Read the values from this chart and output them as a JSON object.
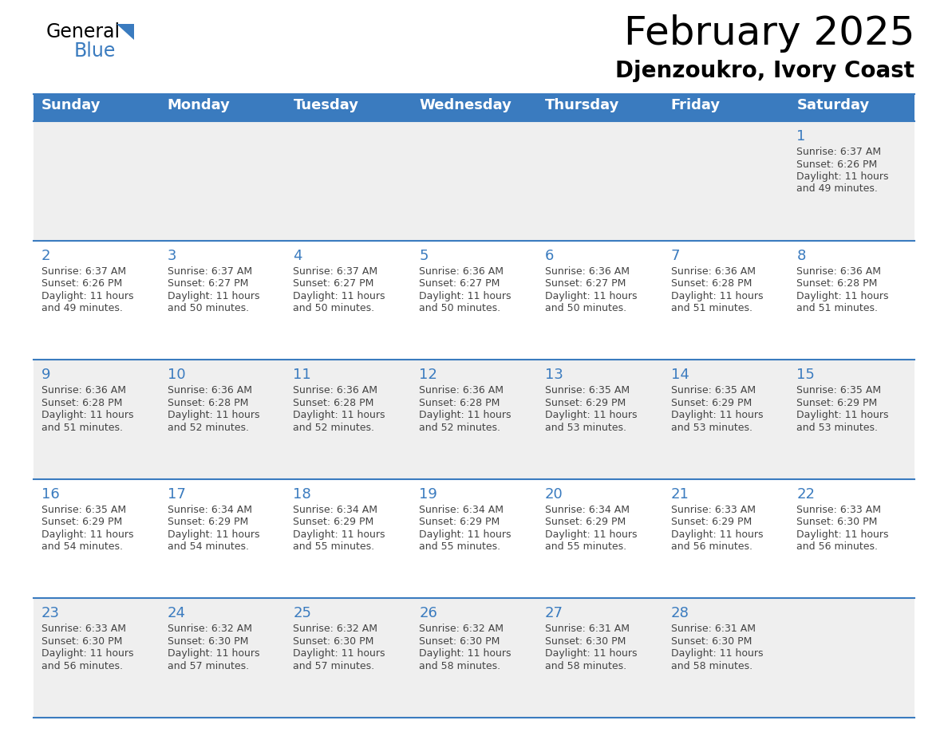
{
  "title": "February 2025",
  "subtitle": "Djenzoukro, Ivory Coast",
  "header_bg_color": "#3a7bbf",
  "header_text_color": "#ffffff",
  "days_of_week": [
    "Sunday",
    "Monday",
    "Tuesday",
    "Wednesday",
    "Thursday",
    "Friday",
    "Saturday"
  ],
  "row_bg_colors": [
    "#efefef",
    "#ffffff"
  ],
  "separator_color": "#3a7bbf",
  "day_number_color": "#3a7bbf",
  "cell_text_color": "#444444",
  "calendar_data": [
    [
      {
        "day": null,
        "sunrise": null,
        "sunset": null,
        "daylight": null
      },
      {
        "day": null,
        "sunrise": null,
        "sunset": null,
        "daylight": null
      },
      {
        "day": null,
        "sunrise": null,
        "sunset": null,
        "daylight": null
      },
      {
        "day": null,
        "sunrise": null,
        "sunset": null,
        "daylight": null
      },
      {
        "day": null,
        "sunrise": null,
        "sunset": null,
        "daylight": null
      },
      {
        "day": null,
        "sunrise": null,
        "sunset": null,
        "daylight": null
      },
      {
        "day": 1,
        "sunrise": "6:37 AM",
        "sunset": "6:26 PM",
        "daylight": "11 hours\nand 49 minutes."
      }
    ],
    [
      {
        "day": 2,
        "sunrise": "6:37 AM",
        "sunset": "6:26 PM",
        "daylight": "11 hours\nand 49 minutes."
      },
      {
        "day": 3,
        "sunrise": "6:37 AM",
        "sunset": "6:27 PM",
        "daylight": "11 hours\nand 50 minutes."
      },
      {
        "day": 4,
        "sunrise": "6:37 AM",
        "sunset": "6:27 PM",
        "daylight": "11 hours\nand 50 minutes."
      },
      {
        "day": 5,
        "sunrise": "6:36 AM",
        "sunset": "6:27 PM",
        "daylight": "11 hours\nand 50 minutes."
      },
      {
        "day": 6,
        "sunrise": "6:36 AM",
        "sunset": "6:27 PM",
        "daylight": "11 hours\nand 50 minutes."
      },
      {
        "day": 7,
        "sunrise": "6:36 AM",
        "sunset": "6:28 PM",
        "daylight": "11 hours\nand 51 minutes."
      },
      {
        "day": 8,
        "sunrise": "6:36 AM",
        "sunset": "6:28 PM",
        "daylight": "11 hours\nand 51 minutes."
      }
    ],
    [
      {
        "day": 9,
        "sunrise": "6:36 AM",
        "sunset": "6:28 PM",
        "daylight": "11 hours\nand 51 minutes."
      },
      {
        "day": 10,
        "sunrise": "6:36 AM",
        "sunset": "6:28 PM",
        "daylight": "11 hours\nand 52 minutes."
      },
      {
        "day": 11,
        "sunrise": "6:36 AM",
        "sunset": "6:28 PM",
        "daylight": "11 hours\nand 52 minutes."
      },
      {
        "day": 12,
        "sunrise": "6:36 AM",
        "sunset": "6:28 PM",
        "daylight": "11 hours\nand 52 minutes."
      },
      {
        "day": 13,
        "sunrise": "6:35 AM",
        "sunset": "6:29 PM",
        "daylight": "11 hours\nand 53 minutes."
      },
      {
        "day": 14,
        "sunrise": "6:35 AM",
        "sunset": "6:29 PM",
        "daylight": "11 hours\nand 53 minutes."
      },
      {
        "day": 15,
        "sunrise": "6:35 AM",
        "sunset": "6:29 PM",
        "daylight": "11 hours\nand 53 minutes."
      }
    ],
    [
      {
        "day": 16,
        "sunrise": "6:35 AM",
        "sunset": "6:29 PM",
        "daylight": "11 hours\nand 54 minutes."
      },
      {
        "day": 17,
        "sunrise": "6:34 AM",
        "sunset": "6:29 PM",
        "daylight": "11 hours\nand 54 minutes."
      },
      {
        "day": 18,
        "sunrise": "6:34 AM",
        "sunset": "6:29 PM",
        "daylight": "11 hours\nand 55 minutes."
      },
      {
        "day": 19,
        "sunrise": "6:34 AM",
        "sunset": "6:29 PM",
        "daylight": "11 hours\nand 55 minutes."
      },
      {
        "day": 20,
        "sunrise": "6:34 AM",
        "sunset": "6:29 PM",
        "daylight": "11 hours\nand 55 minutes."
      },
      {
        "day": 21,
        "sunrise": "6:33 AM",
        "sunset": "6:29 PM",
        "daylight": "11 hours\nand 56 minutes."
      },
      {
        "day": 22,
        "sunrise": "6:33 AM",
        "sunset": "6:30 PM",
        "daylight": "11 hours\nand 56 minutes."
      }
    ],
    [
      {
        "day": 23,
        "sunrise": "6:33 AM",
        "sunset": "6:30 PM",
        "daylight": "11 hours\nand 56 minutes."
      },
      {
        "day": 24,
        "sunrise": "6:32 AM",
        "sunset": "6:30 PM",
        "daylight": "11 hours\nand 57 minutes."
      },
      {
        "day": 25,
        "sunrise": "6:32 AM",
        "sunset": "6:30 PM",
        "daylight": "11 hours\nand 57 minutes."
      },
      {
        "day": 26,
        "sunrise": "6:32 AM",
        "sunset": "6:30 PM",
        "daylight": "11 hours\nand 58 minutes."
      },
      {
        "day": 27,
        "sunrise": "6:31 AM",
        "sunset": "6:30 PM",
        "daylight": "11 hours\nand 58 minutes."
      },
      {
        "day": 28,
        "sunrise": "6:31 AM",
        "sunset": "6:30 PM",
        "daylight": "11 hours\nand 58 minutes."
      },
      {
        "day": null,
        "sunrise": null,
        "sunset": null,
        "daylight": null
      }
    ]
  ],
  "logo_triangle_color": "#3a7bbf",
  "fig_width": 11.88,
  "fig_height": 9.18,
  "dpi": 100
}
